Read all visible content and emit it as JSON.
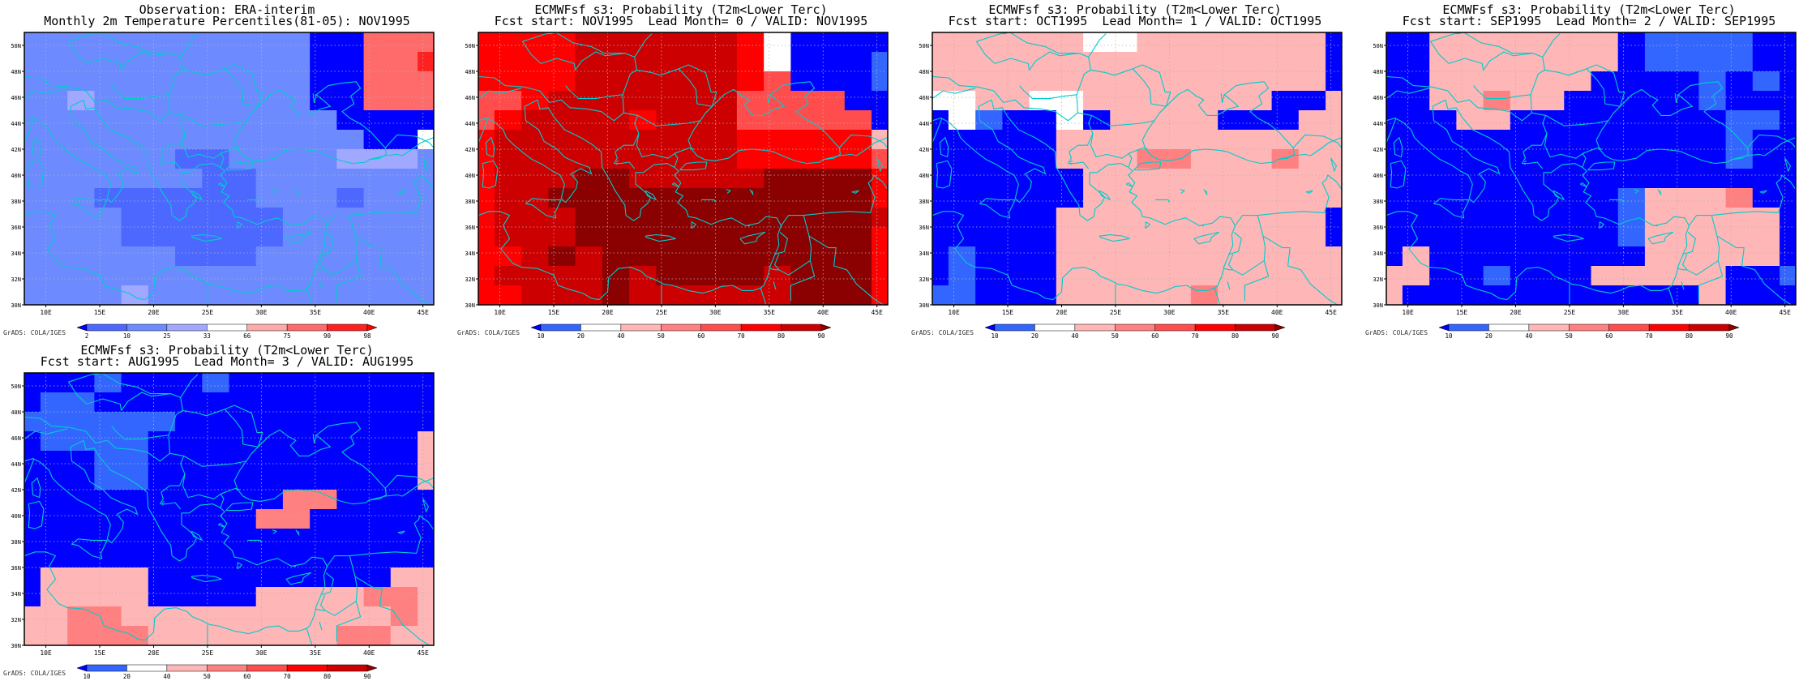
{
  "page": {
    "background": "#ffffff",
    "credit": "GrADS: COLA/IGES"
  },
  "palettes": {
    "obs": [
      "#0000ff",
      "#4d68ff",
      "#6e8aff",
      "#a0a8ff",
      "#ffffff",
      "#ffaaaa",
      "#ff6a6a",
      "#ff2020",
      "#ff0000"
    ],
    "prob": [
      "#0000ff",
      "#3366ff",
      "#ffffff",
      "#ffb6b6",
      "#ff8080",
      "#ff4d4d",
      "#ff0000",
      "#cc0000",
      "#8b0000"
    ]
  },
  "colorbars": {
    "obs": {
      "labels": [
        "2",
        "10",
        "25",
        "33",
        "66",
        "75",
        "90",
        "98"
      ]
    },
    "prob": {
      "labels": [
        "10",
        "20",
        "40",
        "50",
        "60",
        "70",
        "80",
        "90"
      ]
    }
  },
  "map": {
    "lon_range": [
      8,
      46
    ],
    "lat_range": [
      30,
      51
    ],
    "lon_ticks": [
      "10E",
      "15E",
      "20E",
      "25E",
      "30E",
      "35E",
      "40E",
      "45E"
    ],
    "lat_ticks": [
      "30N",
      "32N",
      "34N",
      "36N",
      "38N",
      "40N",
      "42N",
      "44N",
      "46N",
      "48N",
      "50N"
    ],
    "coastline_color": "#00cccc",
    "gridline_color": "#b4b4b4"
  },
  "panels": [
    {
      "id": "obs",
      "title1": "Observation: ERA-interim",
      "title2": "Monthly 2m Temperature Percentiles(81-05): NOV1995",
      "palette": "obs",
      "colorbar": "obs",
      "grid": [
        "2222222222200666",
        "2222222222200667",
        "2222222222200666",
        "2232222222200666",
        "2222222222220000",
        "2222222222222004",
        "2222221122223332",
        "2222222112222222",
        "2221111112221222",
        "2222111111222222",
        "2222111111222222",
        "2222221112222222",
        "2222222222222222",
        "2222322222222222"
      ]
    },
    {
      "id": "lead0",
      "title1": "ECMWFsf s3: Probability (T2m<Lower Terc)",
      "title2": "Fcst start: NOV1995  Lead Month= 0 / VALID: NOV1995",
      "palette": "prob",
      "colorbar": "prob",
      "grid": [
        "6666777777620000",
        "6666777777620001",
        "6666777777650001",
        "5567777777555500",
        "5677776777555550",
        "6777777777666663",
        "6777777777666665",
        "6777887777788886",
        "6778888888888886",
        "6777888888888887",
        "6777888888888886",
        "6678788888888886",
        "6777787888878886",
        "6677787777778886"
      ]
    },
    {
      "id": "lead1",
      "title1": "ECMWFsf s3: Probability (T2m<Lower Terc)",
      "title2": "Fcst start: OCT1995  Lead Month= 1 / VALID: OCT1995",
      "palette": "prob",
      "colorbar": "prob",
      "grid": [
        "3333332233333330",
        "3333333333333330",
        "3333333333333330",
        "2233223333333003",
        "0210020333300033",
        "0000033333333333",
        "0000033344333433",
        "0000003333333333",
        "0000003333333333",
        "0000033333333330",
        "0000033333333330",
        "0100033333333333",
        "0100033333333333",
        "1100033333433333"
      ]
    },
    {
      "id": "lead2",
      "title1": "ECMWFsf s3: Probability (T2m<Lower Terc)",
      "title2": "Fcst start: SEP1995  Lead Month= 2 / VALID: SEP1995",
      "palette": "prob",
      "colorbar": "prob",
      "grid": [
        "0033333330111100",
        "0033333330111100",
        "0033333300001010",
        "0033433000001000",
        "0003300000000110",
        "0000000000000100",
        "0000000000000100",
        "0000000000000000",
        "0000000001333400",
        "0000000001333330",
        "0000000001333330",
        "0300000000333330",
        "3300100033333001",
        "3000000000003000"
      ]
    },
    {
      "id": "lead3",
      "title1": "ECMWFsf s3: Probability (T2m<Lower Terc)",
      "title2": "Fcst start: AUG1995  Lead Month= 3 / VALID: AUG1995",
      "palette": "prob",
      "colorbar": "prob",
      "grid": [
        "0001000100000000",
        "0110000000000000",
        "1111110000000000",
        "0111100000000003",
        "0001100000000003",
        "0001100000000003",
        "0000000000440000",
        "0000000004400000",
        "0000000000000000",
        "0000000000000000",
        "0333300000000033",
        "0333300003333443",
        "3344333333333343",
        "3344433333334433"
      ]
    }
  ]
}
